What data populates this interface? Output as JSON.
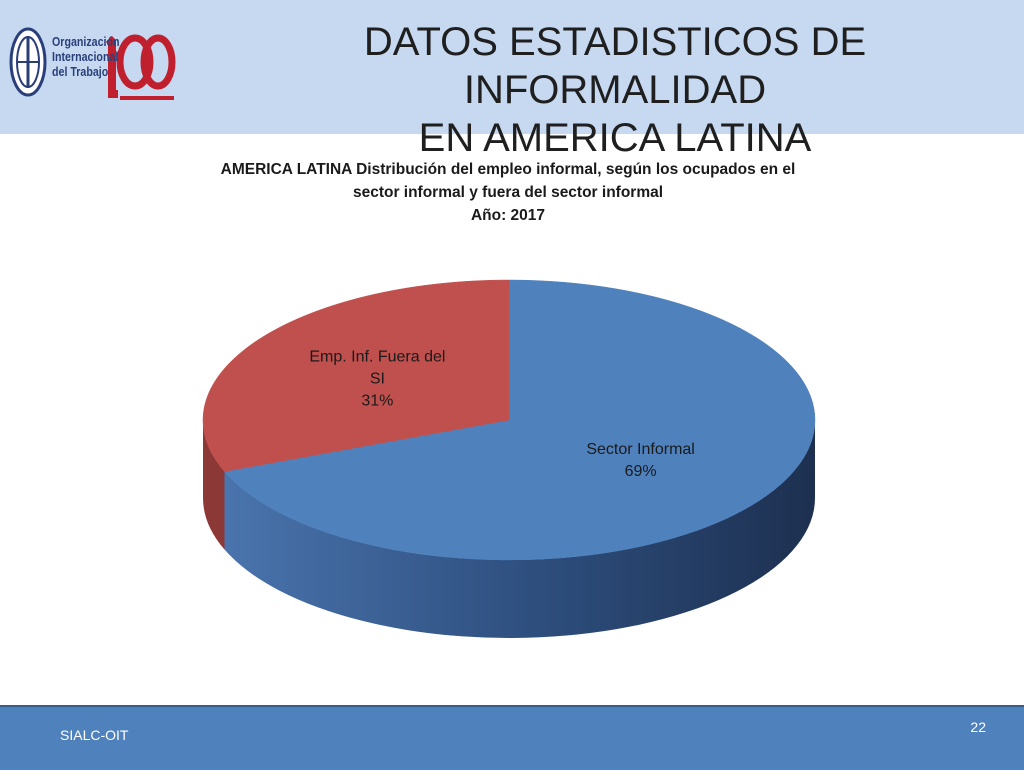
{
  "header": {
    "logo_lines": [
      "Organización",
      "Internacional",
      "del Trabajo"
    ],
    "title_lines": [
      "DATOS ESTADISTICOS DE INFORMALIDAD",
      "EN AMERICA LATINA"
    ]
  },
  "chart_data": {
    "type": "pie",
    "title_lines": [
      "AMERICA LATINA Distribución del empleo informal, según los ocupados en el",
      "sector informal y fuera del sector informal",
      "Año: 2017"
    ],
    "slices": [
      {
        "label_lines": [
          "Sector Informal"
        ],
        "value": 69,
        "value_label": "69%",
        "color": "#4f81bd",
        "side_color": "#2c4770"
      },
      {
        "label_lines": [
          "Emp. Inf. Fuera del",
          "SI"
        ],
        "value": 31,
        "value_label": "31%",
        "color": "#c0504d",
        "side_color": "#8c3836"
      }
    ],
    "style": "3d"
  },
  "footer": {
    "label": "SIALC-OIT",
    "page_number": "22"
  },
  "colors": {
    "header_bg": "#c6d9f1",
    "footer_bg": "#4f81bd",
    "text_dark": "#1a1a1a"
  }
}
